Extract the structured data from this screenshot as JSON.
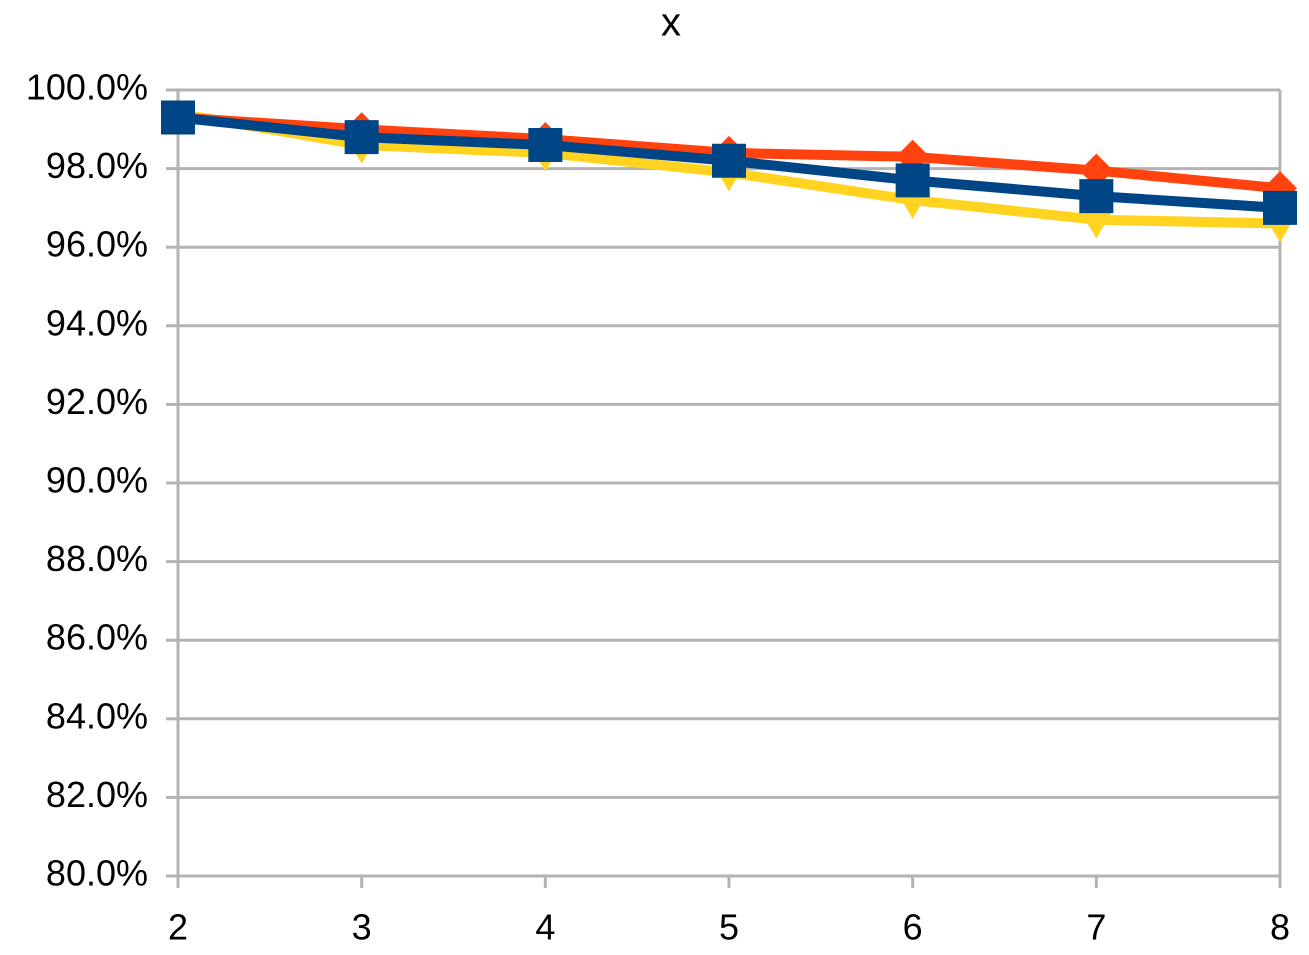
{
  "chart_data": {
    "type": "line",
    "title": "x",
    "x": [
      2,
      3,
      4,
      5,
      6,
      7,
      8
    ],
    "xlim": [
      2,
      8
    ],
    "xticks": [
      2,
      3,
      4,
      5,
      6,
      7,
      8
    ],
    "ylim": [
      80,
      100
    ],
    "yticks": [
      {
        "value": 80,
        "label": "80.0%"
      },
      {
        "value": 82,
        "label": "82.0%"
      },
      {
        "value": 84,
        "label": "84.0%"
      },
      {
        "value": 86,
        "label": "86.0%"
      },
      {
        "value": 88,
        "label": "88.0%"
      },
      {
        "value": 90,
        "label": "90.0%"
      },
      {
        "value": 92,
        "label": "92.0%"
      },
      {
        "value": 94,
        "label": "94.0%"
      },
      {
        "value": 96,
        "label": "96.0%"
      },
      {
        "value": 98,
        "label": "98.0%"
      },
      {
        "value": 100,
        "label": "100.0%"
      }
    ],
    "grid": true,
    "series": [
      {
        "color": "#ffd320",
        "marker": "triangle-down",
        "values": [
          99.4,
          98.6,
          98.4,
          97.9,
          97.2,
          96.7,
          96.6
        ]
      },
      {
        "color": "#ff420e",
        "marker": "diamond",
        "values": [
          99.3,
          99.0,
          98.75,
          98.4,
          98.3,
          97.95,
          97.5
        ]
      },
      {
        "color": "#004586",
        "marker": "square",
        "values": [
          99.3,
          98.8,
          98.6,
          98.2,
          97.7,
          97.3,
          97.0
        ]
      }
    ]
  }
}
